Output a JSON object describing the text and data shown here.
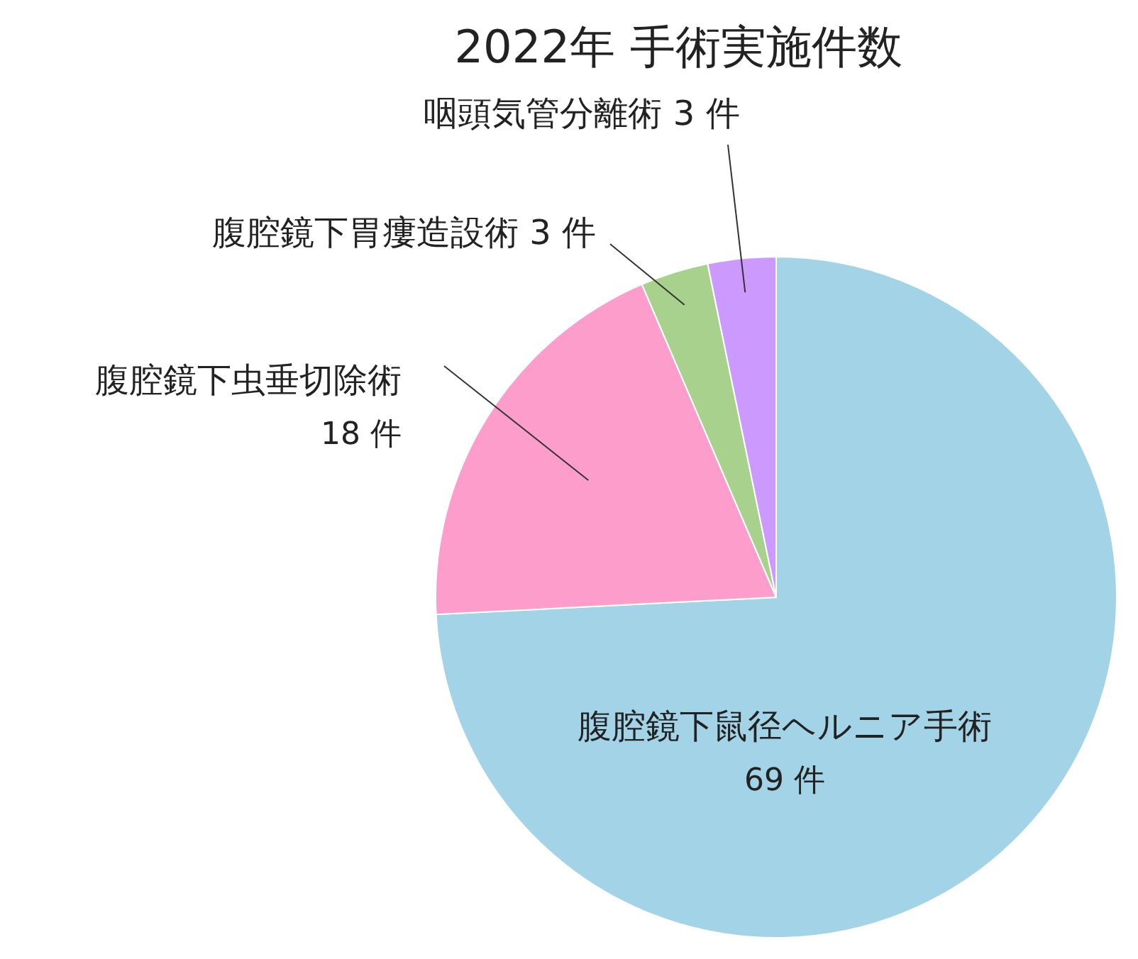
{
  "chart_data": {
    "type": "pie",
    "title": "2022年  手術実施件数",
    "categories": [
      "腹腔鏡下鼠径ヘルニア手術",
      "腹腔鏡下虫垂切除術",
      "腹腔鏡下胃瘻造設術",
      "咽頭気管分離術"
    ],
    "values": [
      69,
      18,
      3,
      3
    ],
    "value_labels": [
      "69 件",
      "18 件",
      "3 件",
      "3 件"
    ],
    "colors": [
      "#a2d3e6",
      "#fc9dcb",
      "#a9d18e",
      "#cc99ff"
    ]
  }
}
